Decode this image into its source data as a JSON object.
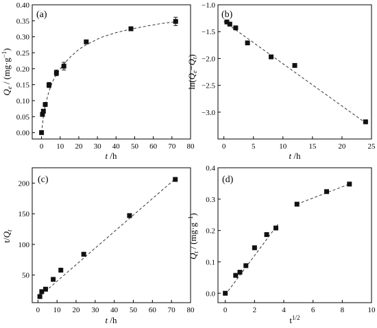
{
  "chart_data": [
    {
      "type": "scatter",
      "panel_label": "(a)",
      "xlabel": "t /h",
      "ylabel": "Qe / (mg·g⁻¹)",
      "xlim": [
        -5,
        80
      ],
      "ylim": [
        -0.02,
        0.4
      ],
      "xticks": [
        "0",
        "10",
        "20",
        "30",
        "40",
        "50",
        "60",
        "70",
        "80"
      ],
      "yticks": [
        "0.00",
        "0.05",
        "0.10",
        "0.15",
        "0.20",
        "0.25",
        "0.30",
        "0.35",
        "0.40"
      ],
      "points": [
        {
          "x": 0,
          "y": 0.0,
          "err": 0
        },
        {
          "x": 0.5,
          "y": 0.057,
          "err": 0.005
        },
        {
          "x": 1,
          "y": 0.067,
          "err": 0.005
        },
        {
          "x": 2,
          "y": 0.088,
          "err": 0.006
        },
        {
          "x": 4,
          "y": 0.149,
          "err": 0.008
        },
        {
          "x": 8,
          "y": 0.187,
          "err": 0.009
        },
        {
          "x": 12,
          "y": 0.208,
          "err": 0.012
        },
        {
          "x": 24,
          "y": 0.284,
          "err": 0.005
        },
        {
          "x": 48,
          "y": 0.325,
          "err": 0.005
        },
        {
          "x": 72,
          "y": 0.348,
          "err": 0.013
        }
      ],
      "fit": [
        [
          0,
          0
        ],
        [
          1,
          0.05
        ],
        [
          2,
          0.085
        ],
        [
          4,
          0.13
        ],
        [
          6,
          0.16
        ],
        [
          8,
          0.183
        ],
        [
          12,
          0.215
        ],
        [
          16,
          0.24
        ],
        [
          20,
          0.26
        ],
        [
          24,
          0.275
        ],
        [
          32,
          0.298
        ],
        [
          40,
          0.313
        ],
        [
          48,
          0.324
        ],
        [
          56,
          0.333
        ],
        [
          64,
          0.341
        ],
        [
          72,
          0.347
        ]
      ]
    },
    {
      "type": "scatter",
      "panel_label": "(b)",
      "xlabel": "t /h",
      "ylabel": "ln(Qe−Qt)",
      "xlim": [
        -1,
        25
      ],
      "ylim": [
        -3.5,
        -1.0
      ],
      "xticks": [
        "0",
        "5",
        "10",
        "15",
        "20",
        "25"
      ],
      "yticks": [
        "−1.0",
        "−1.5",
        "−2.0",
        "−2.5",
        "−3.0"
      ],
      "points": [
        {
          "x": 0.5,
          "y": -1.32
        },
        {
          "x": 1,
          "y": -1.36
        },
        {
          "x": 2,
          "y": -1.43
        },
        {
          "x": 4,
          "y": -1.71
        },
        {
          "x": 8,
          "y": -1.97
        },
        {
          "x": 12,
          "y": -2.13
        },
        {
          "x": 24,
          "y": -3.18
        }
      ],
      "fit": [
        [
          0,
          -1.31
        ],
        [
          24,
          -3.2
        ]
      ]
    },
    {
      "type": "scatter",
      "panel_label": "(c)",
      "xlabel": "t /h",
      "ylabel": "t/Qt",
      "xlim": [
        -3,
        80
      ],
      "ylim": [
        5,
        225
      ],
      "xticks": [
        "0",
        "10",
        "20",
        "30",
        "40",
        "50",
        "60",
        "70",
        "80"
      ],
      "yticks": [
        "50",
        "100",
        "150",
        "200"
      ],
      "points": [
        {
          "x": 1,
          "y": 15
        },
        {
          "x": 2,
          "y": 23
        },
        {
          "x": 4,
          "y": 27
        },
        {
          "x": 8,
          "y": 43
        },
        {
          "x": 12,
          "y": 58
        },
        {
          "x": 24,
          "y": 84
        },
        {
          "x": 48,
          "y": 147
        },
        {
          "x": 72,
          "y": 206
        }
      ],
      "fit": [
        [
          0,
          13
        ],
        [
          72,
          207
        ]
      ]
    },
    {
      "type": "scatter",
      "panel_label": "(d)",
      "xlabel": "t1/2",
      "ylabel": "Qt / (mg·g⁻¹)",
      "xlim": [
        -0.5,
        10
      ],
      "ylim": [
        -0.03,
        0.4
      ],
      "xticks": [
        "0",
        "2",
        "4",
        "6",
        "8",
        "10"
      ],
      "yticks": [
        "0.0",
        "0.1",
        "0.2",
        "0.3",
        "0.4"
      ],
      "points": [
        {
          "x": 0,
          "y": 0.0
        },
        {
          "x": 0.71,
          "y": 0.057
        },
        {
          "x": 1,
          "y": 0.067
        },
        {
          "x": 1.41,
          "y": 0.088
        },
        {
          "x": 2,
          "y": 0.145
        },
        {
          "x": 2.83,
          "y": 0.187
        },
        {
          "x": 3.46,
          "y": 0.208
        },
        {
          "x": 4.9,
          "y": 0.284
        },
        {
          "x": 6.93,
          "y": 0.324
        },
        {
          "x": 8.49,
          "y": 0.348
        }
      ],
      "fit_segments": [
        [
          [
            0,
            -0.005
          ],
          [
            3.6,
            0.22
          ]
        ],
        [
          [
            4.9,
            0.284
          ],
          [
            8.49,
            0.348
          ]
        ]
      ]
    }
  ]
}
